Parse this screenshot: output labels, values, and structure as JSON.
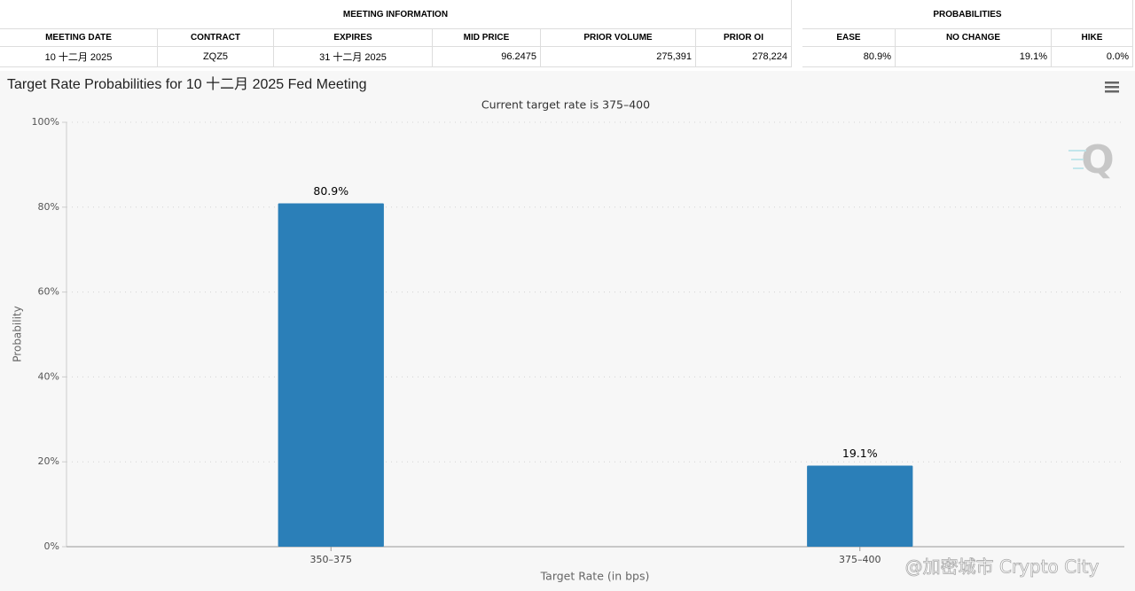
{
  "meeting_table": {
    "title": "MEETING INFORMATION",
    "headers": [
      "MEETING DATE",
      "CONTRACT",
      "EXPIRES",
      "MID PRICE",
      "PRIOR VOLUME",
      "PRIOR OI"
    ],
    "rows": [
      [
        "10 十二月 2025",
        "ZQZ5",
        "31 十二月 2025",
        "96.2475",
        "275,391",
        "278,224"
      ]
    ]
  },
  "probabilities_table": {
    "title": "PROBABILITIES",
    "headers": [
      "EASE",
      "NO CHANGE",
      "HIKE"
    ],
    "rows": [
      [
        "80.9%",
        "19.1%",
        "0.0%"
      ]
    ]
  },
  "chart_data": {
    "type": "bar",
    "title": "Target Rate Probabilities for 10 十二月 2025 Fed Meeting",
    "subtitle": "Current target rate is 375–400",
    "x_label": "Target Rate (in bps)",
    "y_label": "Probability",
    "categories": [
      "350–375",
      "375–400"
    ],
    "values": [
      80.9,
      19.1
    ],
    "value_labels": [
      "80.9%",
      "19.1%"
    ],
    "color": "#2b7fb8",
    "ylim": [
      0,
      100
    ],
    "yticks": [
      {
        "value": 0,
        "label": "0%"
      },
      {
        "value": 20,
        "label": "20%"
      },
      {
        "value": 40,
        "label": "40%"
      },
      {
        "value": 60,
        "label": "60%"
      },
      {
        "value": 80,
        "label": "80%"
      },
      {
        "value": 100,
        "label": "100%"
      }
    ],
    "grid": true
  },
  "watermark": "@加密城市 Crypto City"
}
